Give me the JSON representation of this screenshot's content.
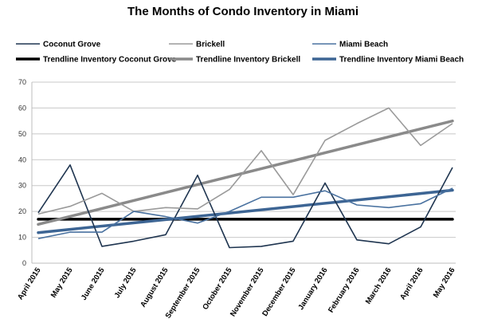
{
  "chart_data": {
    "type": "line",
    "title": "The Months of Condo Inventory in Miami",
    "xlabel": "",
    "ylabel": "",
    "ylim": [
      0,
      70
    ],
    "yticks": [
      0,
      10,
      20,
      30,
      40,
      50,
      60,
      70
    ],
    "grid": true,
    "legend_position": "top",
    "categories": [
      "April 2015",
      "May 2015",
      "June 2015",
      "July 2015",
      "August 2015",
      "September 2015",
      "October 2015",
      "November 2015",
      "December 2015",
      "January 2016",
      "February 2016",
      "March  2016",
      "April 2016",
      "May 2016"
    ],
    "series": [
      {
        "name": "Coconut Grove",
        "color": "#1f3550",
        "values": [
          19.5,
          38,
          6.5,
          8.5,
          11,
          34,
          6,
          6.5,
          8.5,
          31,
          9,
          7.5,
          14,
          37
        ]
      },
      {
        "name": "Brickell",
        "color": "#9a9a9a",
        "values": [
          19,
          22,
          27,
          20,
          21.5,
          21,
          28.5,
          43.5,
          26.5,
          47.5,
          54,
          60,
          45.5,
          54
        ]
      },
      {
        "name": "Miami Beach",
        "color": "#4a72a0",
        "values": [
          9.5,
          12,
          12,
          20,
          18,
          15.5,
          20,
          25.5,
          25.5,
          28,
          22.5,
          21.5,
          23,
          29
        ]
      }
    ],
    "trendlines": [
      {
        "name": "Trendline Inventory Coconut Grove",
        "color": "#000000",
        "start": 17,
        "end": 17
      },
      {
        "name": "Trendline Inventory Brickell",
        "color": "#8a8a8a",
        "start": 15,
        "end": 55
      },
      {
        "name": "Trendline Inventory Miami Beach",
        "color": "#3d6594",
        "start": 11.8,
        "end": 28.2
      }
    ]
  }
}
